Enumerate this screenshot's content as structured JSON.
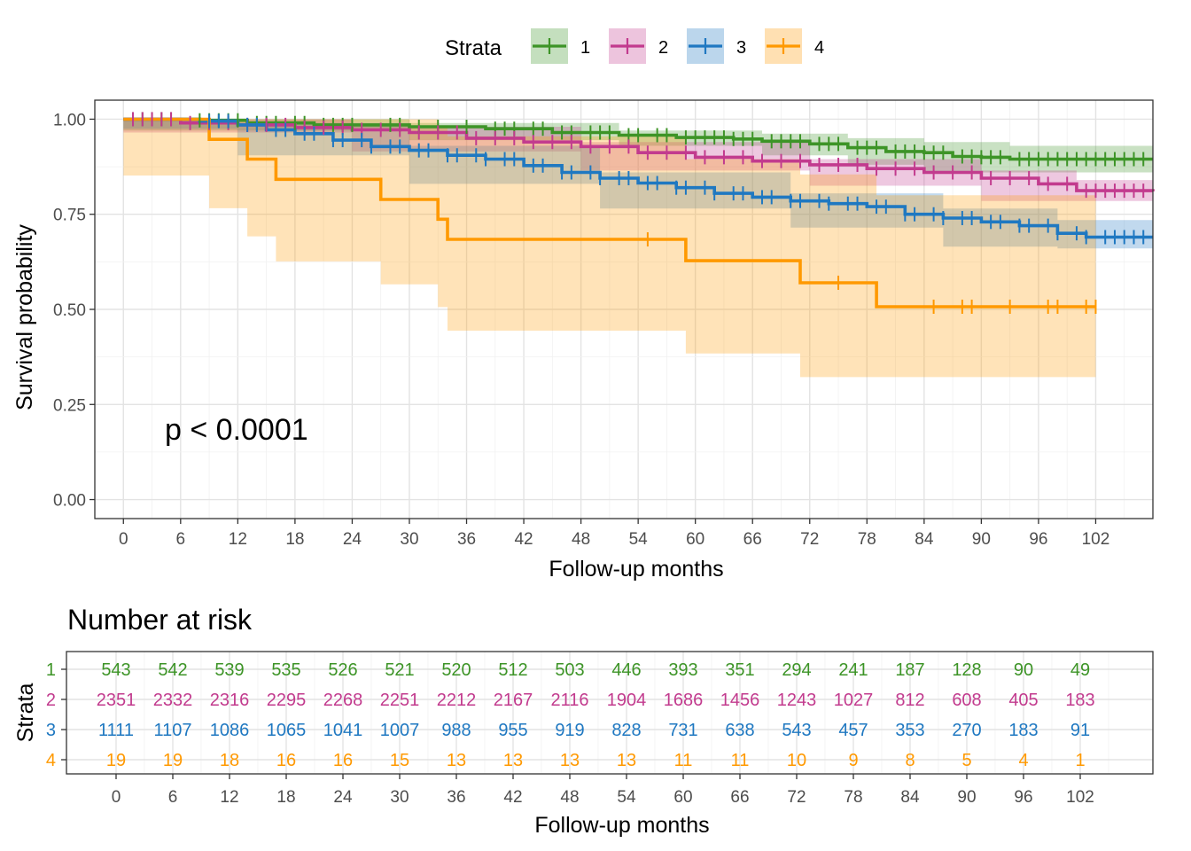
{
  "chart_data": [
    {
      "type": "line",
      "subtype": "kaplan-meier",
      "xlabel": "Follow-up months",
      "ylabel": "Survival probability",
      "xlim": [
        -3,
        108
      ],
      "ylim": [
        -0.05,
        1.05
      ],
      "x_ticks": [
        0,
        6,
        12,
        18,
        24,
        30,
        36,
        42,
        48,
        54,
        60,
        66,
        72,
        78,
        84,
        90,
        96,
        102
      ],
      "y_ticks": [
        0.0,
        0.25,
        0.5,
        0.75,
        1.0
      ],
      "y_tick_labels": [
        "0.00",
        "0.25",
        "0.50",
        "0.75",
        "1.00"
      ],
      "grid": true,
      "legend": {
        "title": "Strata",
        "position": "top"
      },
      "annotation": "p < 0.0001",
      "series": [
        {
          "name": "1",
          "color": "#3d9427",
          "steps": [
            [
              0,
              1.0
            ],
            [
              8,
              0.997
            ],
            [
              13,
              0.99
            ],
            [
              20,
              0.985
            ],
            [
              30,
              0.98
            ],
            [
              38,
              0.975
            ],
            [
              45,
              0.965
            ],
            [
              52,
              0.958
            ],
            [
              58,
              0.952
            ],
            [
              64,
              0.948
            ],
            [
              67,
              0.942
            ],
            [
              72,
              0.935
            ],
            [
              76,
              0.925
            ],
            [
              80,
              0.915
            ],
            [
              84,
              0.912
            ],
            [
              87,
              0.902
            ],
            [
              90,
              0.9
            ],
            [
              93,
              0.895
            ],
            [
              108,
              0.895
            ]
          ],
          "ci": [
            [
              0,
              1.0,
              1.0
            ],
            [
              30,
              0.99,
              0.97
            ],
            [
              52,
              0.97,
              0.945
            ],
            [
              67,
              0.962,
              0.93
            ],
            [
              76,
              0.95,
              0.905
            ],
            [
              84,
              0.94,
              0.88
            ],
            [
              93,
              0.93,
              0.86
            ],
            [
              108,
              0.93,
              0.86
            ]
          ],
          "censor_x": [
            1,
            2,
            3,
            4,
            5,
            8,
            9,
            10,
            11,
            12,
            14,
            15,
            16,
            18,
            19,
            21,
            22,
            23,
            24,
            28,
            29,
            31,
            33,
            36,
            39,
            40,
            41,
            43,
            44,
            46,
            47,
            49,
            50,
            51,
            53,
            54,
            56,
            57,
            59,
            60,
            61,
            62,
            63,
            64,
            65,
            66,
            68,
            69,
            70,
            71,
            73,
            74,
            75,
            77,
            78,
            79,
            81,
            82,
            83,
            84,
            85,
            86,
            88,
            89,
            90,
            91,
            92,
            94,
            95,
            96,
            97,
            98,
            99,
            100,
            101,
            102,
            103,
            104,
            105,
            106,
            107
          ]
        },
        {
          "name": "2",
          "color": "#c23b8e",
          "steps": [
            [
              0,
              1.0
            ],
            [
              6,
              0.99
            ],
            [
              12,
              0.985
            ],
            [
              18,
              0.978
            ],
            [
              24,
              0.972
            ],
            [
              30,
              0.965
            ],
            [
              36,
              0.95
            ],
            [
              42,
              0.94
            ],
            [
              48,
              0.928
            ],
            [
              54,
              0.912
            ],
            [
              60,
              0.9
            ],
            [
              66,
              0.89
            ],
            [
              72,
              0.88
            ],
            [
              78,
              0.87
            ],
            [
              84,
              0.86
            ],
            [
              90,
              0.845
            ],
            [
              96,
              0.83
            ],
            [
              100,
              0.812
            ],
            [
              108,
              0.81
            ]
          ],
          "ci": [
            [
              0,
              1.0,
              1.0
            ],
            [
              24,
              0.98,
              0.965
            ],
            [
              48,
              0.94,
              0.915
            ],
            [
              72,
              0.895,
              0.865
            ],
            [
              90,
              0.865,
              0.825
            ],
            [
              100,
              0.84,
              0.785
            ],
            [
              108,
              0.84,
              0.785
            ]
          ],
          "censor_x": [
            1,
            2,
            3,
            4,
            5,
            7,
            9,
            11,
            13,
            15,
            17,
            19,
            21,
            23,
            25,
            27,
            29,
            31,
            33,
            35,
            37,
            39,
            41,
            43,
            45,
            47,
            49,
            51,
            53,
            55,
            57,
            59,
            61,
            63,
            65,
            67,
            69,
            71,
            73,
            75,
            77,
            79,
            81,
            83,
            85,
            87,
            89,
            91,
            93,
            95,
            97,
            99,
            101,
            102,
            103,
            104,
            105,
            106,
            107
          ]
        },
        {
          "name": "3",
          "color": "#1f78c1",
          "steps": [
            [
              0,
              1.0
            ],
            [
              8,
              0.995
            ],
            [
              12,
              0.985
            ],
            [
              15,
              0.972
            ],
            [
              18,
              0.962
            ],
            [
              22,
              0.945
            ],
            [
              26,
              0.928
            ],
            [
              30,
              0.918
            ],
            [
              34,
              0.905
            ],
            [
              38,
              0.895
            ],
            [
              42,
              0.878
            ],
            [
              46,
              0.86
            ],
            [
              50,
              0.845
            ],
            [
              54,
              0.832
            ],
            [
              58,
              0.82
            ],
            [
              62,
              0.805
            ],
            [
              66,
              0.795
            ],
            [
              70,
              0.785
            ],
            [
              74,
              0.778
            ],
            [
              78,
              0.77
            ],
            [
              82,
              0.75
            ],
            [
              86,
              0.74
            ],
            [
              90,
              0.73
            ],
            [
              94,
              0.72
            ],
            [
              98,
              0.7
            ],
            [
              101,
              0.69
            ],
            [
              108,
              0.69
            ]
          ],
          "ci": [
            [
              0,
              1.0,
              1.0
            ],
            [
              12,
              0.99,
              0.975
            ],
            [
              30,
              0.93,
              0.905
            ],
            [
              50,
              0.86,
              0.83
            ],
            [
              70,
              0.805,
              0.765
            ],
            [
              86,
              0.765,
              0.715
            ],
            [
              98,
              0.735,
              0.665
            ],
            [
              108,
              0.73,
              0.66
            ]
          ],
          "censor_x": [
            9,
            10,
            11,
            13,
            14,
            16,
            17,
            19,
            20,
            22,
            23,
            25,
            26,
            28,
            29,
            31,
            32,
            34,
            35,
            37,
            38,
            40,
            41,
            43,
            44,
            46,
            47,
            49,
            50,
            52,
            53,
            55,
            56,
            58,
            59,
            61,
            62,
            64,
            65,
            67,
            68,
            70,
            71,
            73,
            74,
            76,
            77,
            79,
            80,
            82,
            83,
            85,
            86,
            88,
            89,
            91,
            92,
            94,
            95,
            97,
            98,
            100,
            101,
            103,
            104,
            105,
            106,
            107
          ]
        },
        {
          "name": "4",
          "color": "#ff9900",
          "steps": [
            [
              0,
              1.0
            ],
            [
              9,
              0.947
            ],
            [
              13,
              0.895
            ],
            [
              16,
              0.842
            ],
            [
              27,
              0.789
            ],
            [
              33,
              0.737
            ],
            [
              34,
              0.684
            ],
            [
              59,
              0.628
            ],
            [
              71,
              0.57
            ],
            [
              79,
              0.507
            ],
            [
              102,
              0.507
            ]
          ],
          "ci": [
            [
              0,
              1.0,
              1.0
            ],
            [
              9,
              1.0,
              0.852
            ],
            [
              13,
              1.0,
              0.766
            ],
            [
              16,
              1.0,
              0.692
            ],
            [
              27,
              1.0,
              0.626
            ],
            [
              33,
              0.98,
              0.566
            ],
            [
              34,
              0.955,
              0.506
            ],
            [
              59,
              0.895,
              0.444
            ],
            [
              71,
              0.855,
              0.384
            ],
            [
              79,
              0.8,
              0.322
            ],
            [
              102,
              0.8,
              0.322
            ]
          ],
          "censor_x": [
            55,
            75,
            85,
            88,
            89,
            93,
            97,
            98,
            101,
            102
          ]
        }
      ]
    },
    {
      "type": "table",
      "title": "Number at risk",
      "xlabel": "Follow-up months",
      "ylabel": "Strata",
      "times": [
        0,
        6,
        12,
        18,
        24,
        30,
        36,
        42,
        48,
        54,
        60,
        66,
        72,
        78,
        84,
        90,
        96,
        102
      ],
      "rows": [
        {
          "name": "1",
          "color": "#3d9427",
          "values": [
            543,
            542,
            539,
            535,
            526,
            521,
            520,
            512,
            503,
            446,
            393,
            351,
            294,
            241,
            187,
            128,
            90,
            49
          ]
        },
        {
          "name": "2",
          "color": "#c23b8e",
          "values": [
            2351,
            2332,
            2316,
            2295,
            2268,
            2251,
            2212,
            2167,
            2116,
            1904,
            1686,
            1456,
            1243,
            1027,
            812,
            608,
            405,
            183
          ]
        },
        {
          "name": "3",
          "color": "#1f78c1",
          "values": [
            1111,
            1107,
            1086,
            1065,
            1041,
            1007,
            988,
            955,
            919,
            828,
            731,
            638,
            543,
            457,
            353,
            270,
            183,
            91
          ]
        },
        {
          "name": "4",
          "color": "#ff9900",
          "values": [
            19,
            19,
            18,
            16,
            16,
            15,
            13,
            13,
            13,
            13,
            11,
            11,
            10,
            9,
            8,
            5,
            4,
            1
          ]
        }
      ]
    }
  ]
}
